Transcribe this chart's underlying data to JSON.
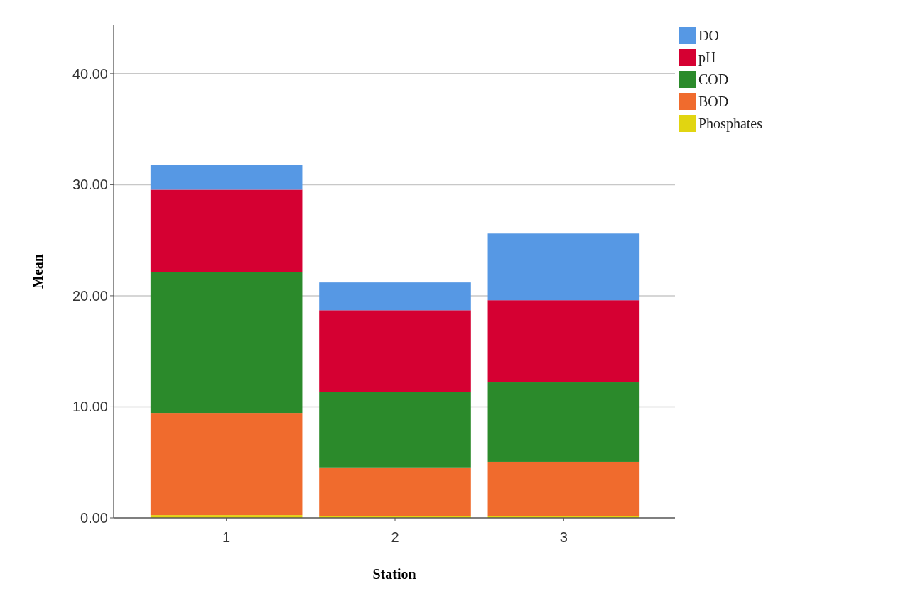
{
  "chart_data": {
    "type": "bar",
    "stacked": true,
    "xlabel": "Station",
    "ylabel": "Mean",
    "categories": [
      "1",
      "2",
      "3"
    ],
    "series": [
      {
        "name": "Phosphates",
        "color": "#e1d511",
        "values": [
          0.25,
          0.15,
          0.15
        ]
      },
      {
        "name": "BOD",
        "color": "#f06b2d",
        "values": [
          9.2,
          4.4,
          4.9
        ]
      },
      {
        "name": "COD",
        "color": "#2b8a2b",
        "values": [
          12.7,
          6.8,
          7.15
        ]
      },
      {
        "name": "pH",
        "color": "#d50032",
        "values": [
          7.4,
          7.35,
          7.4
        ]
      },
      {
        "name": "DO",
        "color": "#5698e4",
        "values": [
          2.2,
          2.5,
          6.0
        ]
      }
    ],
    "ylim": [
      0,
      44.4
    ],
    "yticks": [
      {
        "value": 0,
        "label": "0.00"
      },
      {
        "value": 10,
        "label": "10.00"
      },
      {
        "value": 20,
        "label": "20.00"
      },
      {
        "value": 30,
        "label": "30.00"
      },
      {
        "value": 40,
        "label": "40.00"
      }
    ],
    "grid": "y",
    "legend": "top right"
  }
}
